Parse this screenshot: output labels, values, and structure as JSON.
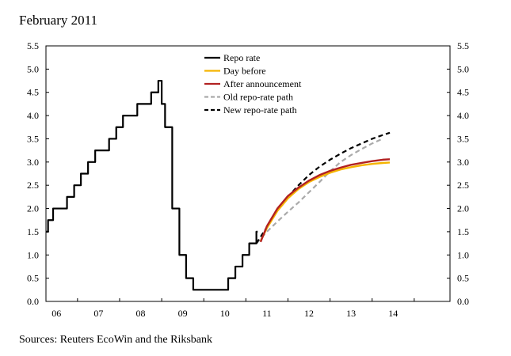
{
  "title": "February 2011",
  "source": "Sources: Reuters EcoWin and the Riksbank",
  "chart_data": {
    "type": "line",
    "ylim": [
      0,
      5.5
    ],
    "yticks": [
      "0.0",
      "0.5",
      "1.0",
      "1.5",
      "2.0",
      "2.5",
      "3.0",
      "3.5",
      "4.0",
      "4.5",
      "5.0",
      "5.5"
    ],
    "xlim": [
      2005.75,
      2015.35
    ],
    "xticks": [
      {
        "label": "06",
        "x": 2006.0
      },
      {
        "label": "07",
        "x": 2007.0
      },
      {
        "label": "08",
        "x": 2008.0
      },
      {
        "label": "09",
        "x": 2009.0
      },
      {
        "label": "10",
        "x": 2010.0
      },
      {
        "label": "11",
        "x": 2011.0
      },
      {
        "label": "12",
        "x": 2012.0
      },
      {
        "label": "13",
        "x": 2013.0
      },
      {
        "label": "14",
        "x": 2014.0
      }
    ],
    "legend_position": "top-center",
    "series": [
      {
        "name": "Repo rate",
        "color": "#000000",
        "style": "step",
        "points": [
          [
            2005.75,
            1.5
          ],
          [
            2005.8,
            1.75
          ],
          [
            2005.92,
            2.0
          ],
          [
            2006.25,
            2.25
          ],
          [
            2006.42,
            2.5
          ],
          [
            2006.58,
            2.75
          ],
          [
            2006.75,
            3.0
          ],
          [
            2006.92,
            3.25
          ],
          [
            2007.25,
            3.5
          ],
          [
            2007.42,
            3.75
          ],
          [
            2007.58,
            4.0
          ],
          [
            2007.92,
            4.25
          ],
          [
            2008.25,
            4.5
          ],
          [
            2008.42,
            4.75
          ],
          [
            2008.5,
            4.25
          ],
          [
            2008.58,
            3.75
          ],
          [
            2008.75,
            2.0
          ],
          [
            2008.92,
            1.0
          ],
          [
            2009.08,
            0.5
          ],
          [
            2009.25,
            0.25
          ],
          [
            2010.08,
            0.5
          ],
          [
            2010.25,
            0.75
          ],
          [
            2010.42,
            1.0
          ],
          [
            2010.58,
            1.25
          ],
          [
            2010.75,
            1.5
          ],
          [
            2010.78,
            1.5
          ]
        ]
      },
      {
        "name": "Day before",
        "color": "#f5b400",
        "style": "solid",
        "points": [
          [
            2010.85,
            1.3
          ],
          [
            2011.0,
            1.58
          ],
          [
            2011.25,
            1.95
          ],
          [
            2011.5,
            2.22
          ],
          [
            2011.75,
            2.42
          ],
          [
            2012.0,
            2.57
          ],
          [
            2012.25,
            2.68
          ],
          [
            2012.5,
            2.77
          ],
          [
            2012.75,
            2.84
          ],
          [
            2013.0,
            2.89
          ],
          [
            2013.25,
            2.93
          ],
          [
            2013.5,
            2.96
          ],
          [
            2013.75,
            2.98
          ],
          [
            2013.92,
            2.99
          ]
        ]
      },
      {
        "name": "After announcement",
        "color": "#b22222",
        "style": "solid",
        "points": [
          [
            2010.85,
            1.28
          ],
          [
            2011.0,
            1.62
          ],
          [
            2011.25,
            2.0
          ],
          [
            2011.5,
            2.27
          ],
          [
            2011.75,
            2.45
          ],
          [
            2012.0,
            2.6
          ],
          [
            2012.25,
            2.72
          ],
          [
            2012.5,
            2.81
          ],
          [
            2012.75,
            2.88
          ],
          [
            2013.0,
            2.94
          ],
          [
            2013.25,
            2.98
          ],
          [
            2013.5,
            3.02
          ],
          [
            2013.75,
            3.05
          ],
          [
            2013.92,
            3.06
          ]
        ]
      },
      {
        "name": "Old repo-rate path",
        "color": "#aaaaaa",
        "style": "dashed",
        "points": [
          [
            2010.75,
            1.25
          ],
          [
            2011.0,
            1.5
          ],
          [
            2011.25,
            1.72
          ],
          [
            2011.5,
            1.93
          ],
          [
            2011.75,
            2.13
          ],
          [
            2012.0,
            2.35
          ],
          [
            2012.25,
            2.57
          ],
          [
            2012.5,
            2.8
          ],
          [
            2012.75,
            3.0
          ],
          [
            2013.0,
            3.15
          ],
          [
            2013.25,
            3.28
          ],
          [
            2013.5,
            3.4
          ],
          [
            2013.75,
            3.5
          ]
        ]
      },
      {
        "name": "New repo-rate path",
        "color": "#000000",
        "style": "dashed",
        "points": [
          [
            2010.75,
            1.25
          ],
          [
            2011.0,
            1.6
          ],
          [
            2011.25,
            1.97
          ],
          [
            2011.5,
            2.25
          ],
          [
            2011.75,
            2.5
          ],
          [
            2012.0,
            2.72
          ],
          [
            2012.25,
            2.9
          ],
          [
            2012.5,
            3.05
          ],
          [
            2012.75,
            3.18
          ],
          [
            2013.0,
            3.3
          ],
          [
            2013.25,
            3.4
          ],
          [
            2013.5,
            3.5
          ],
          [
            2013.75,
            3.58
          ],
          [
            2013.92,
            3.63
          ]
        ]
      }
    ]
  }
}
